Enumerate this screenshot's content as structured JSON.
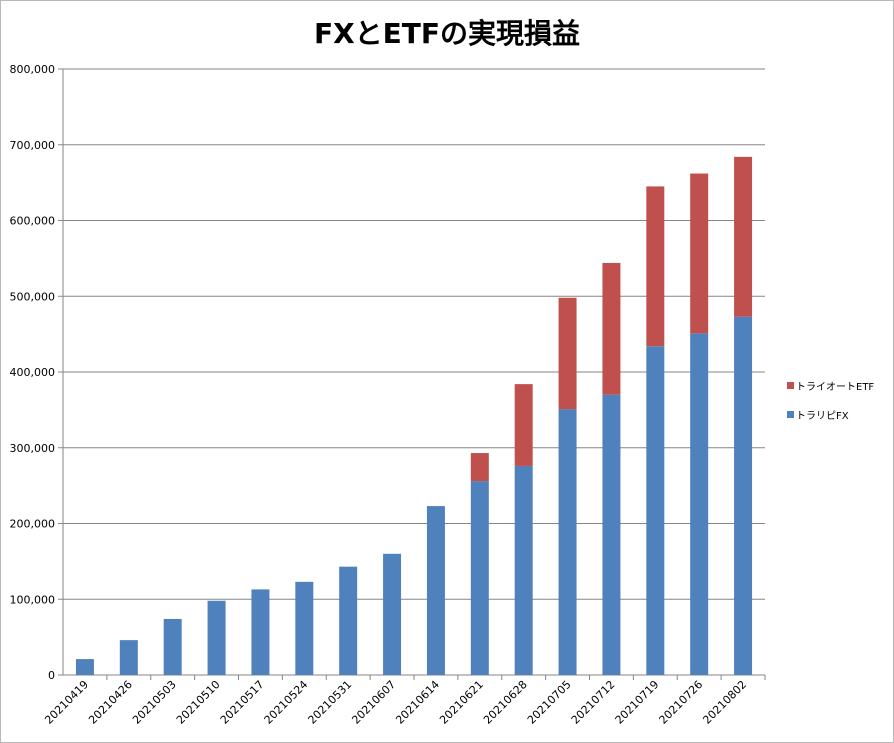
{
  "chart_data": {
    "type": "bar",
    "stacked": true,
    "title": "FXとETFの実現損益",
    "xlabel": "",
    "ylabel": "",
    "ylim": [
      0,
      800000
    ],
    "y_ticks": [
      "0",
      "100,000",
      "200,000",
      "300,000",
      "400,000",
      "500,000",
      "600,000",
      "700,000",
      "800,000"
    ],
    "grid": true,
    "legend_position": "right",
    "categories": [
      "20210419",
      "20210426",
      "20210503",
      "20210510",
      "20210517",
      "20210524",
      "20210531",
      "20210607",
      "20210614",
      "20210621",
      "20210628",
      "20210705",
      "20210712",
      "20210719",
      "20210726",
      "20210802"
    ],
    "series": [
      {
        "name": "トラリピFX",
        "color": "#4f81bd",
        "values": [
          21000,
          46000,
          74000,
          98000,
          113000,
          123000,
          143000,
          160000,
          223000,
          256000,
          276000,
          351000,
          370000,
          434000,
          451000,
          473000
        ]
      },
      {
        "name": "トライオートETF",
        "color": "#c0504d",
        "values": [
          0,
          0,
          0,
          0,
          0,
          0,
          0,
          0,
          0,
          37000,
          108000,
          147000,
          174000,
          211000,
          211000,
          211000
        ]
      }
    ]
  }
}
